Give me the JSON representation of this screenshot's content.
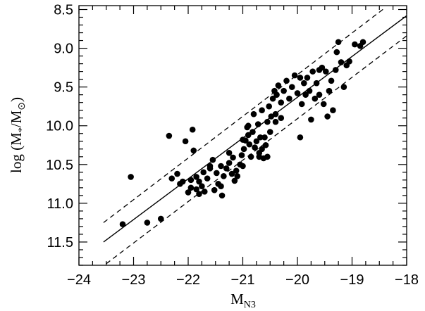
{
  "chart_data": {
    "type": "scatter",
    "title": "",
    "xlabel": {
      "main": "M",
      "sub": "N3"
    },
    "ylabel": {
      "main": "log  (M",
      "sub1": "*",
      "mid": "/M",
      "sub2": "⊙",
      "end": ")"
    },
    "xlim": [
      -24,
      -18
    ],
    "ylim": [
      11.8,
      8.45
    ],
    "y_inverted": true,
    "grid": false,
    "x_ticks": [
      -24,
      -23,
      -22,
      -21,
      -20,
      -19,
      -18
    ],
    "x_tick_labels": [
      "−24",
      "−23",
      "−22",
      "−21",
      "−20",
      "−19",
      "−18"
    ],
    "y_ticks": [
      8.5,
      9.0,
      9.5,
      10.0,
      10.5,
      11.0,
      11.5
    ],
    "y_tick_labels": [
      "8.5",
      "9.0",
      "9.5",
      "10.0",
      "10.5",
      "11.0",
      "11.5"
    ],
    "fit_line": {
      "points": [
        [
          -23.55,
          11.5
        ],
        [
          -18.0,
          8.58
        ]
      ]
    },
    "scatter_band": [
      {
        "points": [
          [
            -23.55,
            11.25
          ],
          [
            -18.4,
            8.48
          ]
        ]
      },
      {
        "points": [
          [
            -23.5,
            11.78
          ],
          [
            -18.0,
            8.84
          ]
        ]
      }
    ],
    "points": [
      [
        -23.2,
        11.27
      ],
      [
        -23.05,
        10.66
      ],
      [
        -22.75,
        11.25
      ],
      [
        -22.5,
        11.2
      ],
      [
        -22.35,
        10.13
      ],
      [
        -22.3,
        10.68
      ],
      [
        -22.2,
        10.62
      ],
      [
        -22.15,
        10.75
      ],
      [
        -22.05,
        10.2
      ],
      [
        -22.0,
        10.86
      ],
      [
        -21.95,
        10.7
      ],
      [
        -21.92,
        10.05
      ],
      [
        -21.9,
        10.32
      ],
      [
        -21.85,
        10.82
      ],
      [
        -21.85,
        10.66
      ],
      [
        -21.8,
        10.72
      ],
      [
        -21.8,
        10.88
      ],
      [
        -21.75,
        10.78
      ],
      [
        -21.72,
        10.6
      ],
      [
        -21.7,
        10.85
      ],
      [
        -21.65,
        10.68
      ],
      [
        -21.6,
        10.52
      ],
      [
        -21.55,
        10.44
      ],
      [
        -21.52,
        10.83
      ],
      [
        -21.48,
        10.61
      ],
      [
        -21.45,
        10.75
      ],
      [
        -21.4,
        10.52
      ],
      [
        -21.38,
        10.9
      ],
      [
        -21.35,
        10.65
      ],
      [
        -21.3,
        10.55
      ],
      [
        -21.25,
        10.48
      ],
      [
        -21.2,
        10.62
      ],
      [
        -21.18,
        10.41
      ],
      [
        -21.15,
        10.71
      ],
      [
        -21.12,
        10.58
      ],
      [
        -21.1,
        10.65
      ],
      [
        -21.05,
        10.5
      ],
      [
        -21.02,
        10.38
      ],
      [
        -21.0,
        10.52
      ],
      [
        -20.98,
        10.3
      ],
      [
        -20.95,
        10.19
      ],
      [
        -20.92,
        10.02
      ],
      [
        -20.9,
        10.12
      ],
      [
        -20.88,
        10.24
      ],
      [
        -20.85,
        10.4
      ],
      [
        -20.82,
        10.08
      ],
      [
        -20.8,
        9.85
      ],
      [
        -20.78,
        10.28
      ],
      [
        -20.75,
        10.2
      ],
      [
        -20.72,
        9.98
      ],
      [
        -20.7,
        10.35
      ],
      [
        -20.68,
        10.15
      ],
      [
        -20.65,
        10.3
      ],
      [
        -20.62,
        10.42
      ],
      [
        -20.6,
        10.15
      ],
      [
        -20.58,
        10.25
      ],
      [
        -20.55,
        9.95
      ],
      [
        -20.52,
        9.75
      ],
      [
        -20.5,
        10.08
      ],
      [
        -20.48,
        9.88
      ],
      [
        -20.45,
        9.65
      ],
      [
        -20.42,
        9.55
      ],
      [
        -20.4,
        9.85
      ],
      [
        -20.38,
        9.6
      ],
      [
        -20.35,
        9.48
      ],
      [
        -20.3,
        9.7
      ],
      [
        -20.25,
        9.55
      ],
      [
        -20.2,
        9.42
      ],
      [
        -20.15,
        9.65
      ],
      [
        -20.1,
        9.5
      ],
      [
        -20.05,
        9.35
      ],
      [
        -20.0,
        9.58
      ],
      [
        -19.95,
        10.15
      ],
      [
        -19.92,
        9.72
      ],
      [
        -19.88,
        9.45
      ],
      [
        -19.85,
        9.6
      ],
      [
        -19.82,
        9.38
      ],
      [
        -19.78,
        9.55
      ],
      [
        -19.75,
        9.92
      ],
      [
        -19.72,
        9.3
      ],
      [
        -19.68,
        9.65
      ],
      [
        -19.65,
        9.45
      ],
      [
        -19.6,
        9.6
      ],
      [
        -19.55,
        9.25
      ],
      [
        -19.52,
        9.72
      ],
      [
        -19.48,
        9.3
      ],
      [
        -19.45,
        9.88
      ],
      [
        -19.42,
        9.55
      ],
      [
        -19.38,
        9.42
      ],
      [
        -19.35,
        9.8
      ],
      [
        -19.3,
        9.28
      ],
      [
        -19.28,
        9.05
      ],
      [
        -19.25,
        8.92
      ],
      [
        -19.2,
        9.18
      ],
      [
        -19.15,
        9.5
      ],
      [
        -19.1,
        9.22
      ],
      [
        -19.05,
        9.17
      ],
      [
        -18.95,
        8.95
      ],
      [
        -18.85,
        8.97
      ],
      [
        -18.8,
        8.92
      ],
      [
        -22.1,
        10.72
      ],
      [
        -21.95,
        10.8
      ],
      [
        -21.6,
        10.55
      ],
      [
        -21.4,
        10.78
      ],
      [
        -21.25,
        10.35
      ],
      [
        -20.7,
        10.4
      ],
      [
        -20.65,
        9.8
      ],
      [
        -20.3,
        9.9
      ],
      [
        -19.95,
        9.38
      ],
      [
        -19.6,
        9.28
      ],
      [
        -20.9,
        10.0
      ],
      [
        -21.0,
        10.18
      ],
      [
        -20.55,
        10.4
      ],
      [
        -20.4,
        9.95
      ]
    ]
  }
}
